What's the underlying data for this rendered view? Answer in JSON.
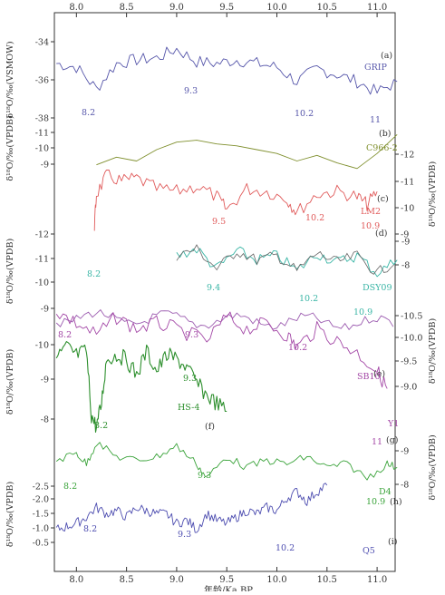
{
  "chart_data": {
    "type": "line",
    "x_axis": {
      "label": "年龄/Ka BP",
      "ticks": [
        "8.0",
        "8.5",
        "9.0",
        "9.5",
        "10.0",
        "10.5",
        "11.0"
      ],
      "range": [
        7.78,
        11.18
      ]
    },
    "colors": {
      "grip": "#5656aa",
      "c966": "#7f8f2d",
      "lm2": "#e05a5a",
      "dsy_teal": "#39b5a5",
      "dsy_gray": "#666666",
      "dsy_purple": "#9c5cb0",
      "sb10": "#a347a6",
      "hs4": "#2d8f2d",
      "d4": "#3aa33a",
      "q5": "#4d4db0",
      "axis": "#333333"
    },
    "panels": [
      {
        "id": "a",
        "tag": "(a)",
        "name": "GRIP",
        "ylabel": "δ¹⁸O/‰(VSMOW)",
        "ylabel_side": "left",
        "yticks": [
          "-34",
          "-36",
          "-38"
        ],
        "events": [
          "8.2",
          "9.3",
          "10.2",
          "11"
        ],
        "series": [
          {
            "x": [
              7.8,
              8.0,
              8.2,
              8.4,
              8.6,
              8.8,
              9.0,
              9.2,
              9.4,
              9.6,
              9.8,
              10.0,
              10.2,
              10.4,
              10.6,
              10.8,
              11.0,
              11.2
            ],
            "y": [
              -35.0,
              -35.2,
              -36.4,
              -35.0,
              -34.8,
              -34.7,
              -34.2,
              -34.9,
              -35.0,
              -34.8,
              -35.0,
              -35.2,
              -36.0,
              -35.3,
              -35.6,
              -36.0,
              -36.6,
              -36.0
            ]
          }
        ]
      },
      {
        "id": "b",
        "tag": "(b)",
        "name": "C966-2",
        "ylabel": "δ¹⁸O/‰(VPDB)",
        "ylabel_side": "left",
        "yticks": [
          "-11",
          "-10",
          "-9"
        ],
        "series": [
          {
            "x": [
              8.2,
              8.4,
              8.6,
              8.8,
              9.0,
              9.2,
              9.4,
              9.6,
              9.8,
              10.0,
              10.2,
              10.4,
              10.6,
              10.8,
              11.0,
              11.2
            ],
            "y": [
              -9.2,
              -9.6,
              -9.4,
              -10.0,
              -10.4,
              -10.5,
              -10.3,
              -10.2,
              -10.0,
              -9.8,
              -9.4,
              -9.7,
              -9.3,
              -9.0,
              -9.8,
              -10.8
            ]
          }
        ]
      },
      {
        "id": "c",
        "tag": "(c)",
        "name": "LM2",
        "ylabel": "δ¹⁸O/‰(VPDB)",
        "ylabel_side": "right",
        "yticks": [
          "-12",
          "-11",
          "-10",
          "-9"
        ],
        "events": [
          "9.5",
          "10.2",
          "10.9"
        ],
        "series": [
          {
            "x": [
              8.18,
              8.2,
              8.3,
              8.45,
              8.6,
              8.8,
              9.0,
              9.2,
              9.4,
              9.5,
              9.7,
              9.9,
              10.1,
              10.2,
              10.4,
              10.6,
              10.8,
              10.9,
              11.0
            ],
            "y": [
              -9.3,
              -10.5,
              -11.2,
              -11.0,
              -11.1,
              -10.7,
              -10.6,
              -10.8,
              -10.4,
              -9.9,
              -10.7,
              -10.6,
              -10.3,
              -9.8,
              -10.5,
              -10.6,
              -10.4,
              -10.1,
              -10.6
            ]
          }
        ]
      },
      {
        "id": "d",
        "tag": "(d)",
        "name": "DSY09",
        "ylabel": "δ¹⁸O/‰(VPDB)",
        "ylabel_side": "left",
        "yticks": [
          "-12",
          "-11",
          "-10",
          "-9"
        ],
        "right_yticks": [
          "-9",
          "-8"
        ],
        "events": [
          "8.2",
          "9.4",
          "10.2",
          "10.9"
        ],
        "series": [
          {
            "x": [
              9.0,
              9.2,
              9.4,
              9.6,
              9.8,
              10.0,
              10.2,
              10.4,
              10.6,
              10.8,
              11.0,
              11.2
            ],
            "y": [
              -11.0,
              -11.3,
              -10.4,
              -11.2,
              -10.8,
              -11.0,
              -10.3,
              -11.1,
              -10.7,
              -11.0,
              -10.2,
              -10.8
            ]
          }
        ]
      },
      {
        "id": "e",
        "tag": "(e)",
        "name": "SB10",
        "ylabel": "δ¹⁸O/‰(VPDB)",
        "ylabel_side": "right",
        "yticks": [
          "-10.5",
          "-10.0",
          "-9.5",
          "-9.0"
        ],
        "events": [
          "8.2",
          "9.3",
          "10.2",
          "11",
          "Y1"
        ],
        "series": [
          {
            "x": [
              7.8,
              8.0,
              8.2,
              8.4,
              8.6,
              8.8,
              9.0,
              9.3,
              9.5,
              9.7,
              9.9,
              10.1,
              10.2,
              10.4,
              10.6,
              10.8,
              11.0,
              11.1
            ],
            "y": [
              -10.3,
              -10.1,
              -9.9,
              -10.2,
              -10.0,
              -10.1,
              -10.0,
              -9.8,
              -10.2,
              -10.0,
              -10.1,
              -9.9,
              -9.7,
              -10.0,
              -9.8,
              -9.6,
              -9.3,
              -9.0
            ]
          }
        ]
      },
      {
        "id": "f",
        "tag": "(f)",
        "name": "HS-4",
        "ylabel": "δ¹⁸O/‰(VPDB)",
        "ylabel_side": "left",
        "yticks": [
          "-10",
          "-9",
          "-8"
        ],
        "events": [
          "9.3",
          "8.2"
        ],
        "series": [
          {
            "x": [
              7.8,
              7.9,
              8.0,
              8.1,
              8.15,
              8.2,
              8.25,
              8.3,
              8.4,
              8.5,
              8.6,
              8.7,
              8.8,
              8.9,
              9.0,
              9.1,
              9.2,
              9.3,
              9.4,
              9.5
            ],
            "y": [
              -9.6,
              -9.9,
              -9.7,
              -9.8,
              -8.2,
              -7.9,
              -8.5,
              -9.6,
              -9.7,
              -9.6,
              -9.2,
              -9.8,
              -9.3,
              -9.7,
              -9.6,
              -9.4,
              -9.0,
              -8.7,
              -8.5,
              -8.3
            ]
          }
        ]
      },
      {
        "id": "g",
        "tag": "(g)",
        "name": "D4",
        "ylabel": "δ¹⁸O/‰(VPDB)",
        "ylabel_side": "right",
        "yticks": [
          "-9",
          "-8"
        ],
        "events": [
          "8.2",
          "9.3",
          "10.9"
        ],
        "series": [
          {
            "x": [
              7.8,
              8.0,
              8.1,
              8.2,
              8.4,
              8.6,
              8.8,
              9.0,
              9.2,
              9.3,
              9.5,
              9.7,
              9.9,
              10.1,
              10.3,
              10.5,
              10.7,
              10.9,
              11.1,
              11.2
            ],
            "y": [
              -8.7,
              -8.9,
              -8.6,
              -9.2,
              -8.8,
              -8.7,
              -8.8,
              -9.1,
              -8.6,
              -8.2,
              -8.8,
              -8.5,
              -8.7,
              -8.6,
              -8.8,
              -8.5,
              -8.6,
              -8.2,
              -8.6,
              -8.5
            ]
          }
        ]
      },
      {
        "id": "h",
        "tag": "(h)",
        "name": "",
        "events": [],
        "series": []
      },
      {
        "id": "i",
        "tag": "(i)",
        "name": "Q5",
        "ylabel": "δ¹⁸O/‰(VPDB)",
        "ylabel_side": "left",
        "yticks": [
          "-2.5",
          "-2.0",
          "-1.5",
          "-1.0",
          "-0.5"
        ],
        "events": [
          "8.2",
          "9.3",
          "10.2"
        ],
        "series": [
          {
            "x": [
              7.8,
              7.9,
              8.0,
              8.1,
              8.2,
              8.3,
              8.4,
              8.5,
              8.6,
              8.7,
              8.8,
              8.9,
              9.0,
              9.1,
              9.2,
              9.3,
              9.4,
              9.5,
              9.6,
              9.7,
              9.8,
              9.9,
              10.0,
              10.1,
              10.2,
              10.3,
              10.4,
              10.5
            ],
            "y": [
              -2.2,
              -2.1,
              -2.0,
              -1.8,
              -1.5,
              -1.7,
              -1.6,
              -1.8,
              -1.5,
              -1.6,
              -1.7,
              -1.7,
              -2.0,
              -1.9,
              -2.2,
              -1.7,
              -1.9,
              -2.0,
              -1.8,
              -1.6,
              -1.7,
              -1.5,
              -1.6,
              -1.2,
              -1.0,
              -1.3,
              -1.0,
              -0.8
            ]
          }
        ]
      }
    ]
  }
}
